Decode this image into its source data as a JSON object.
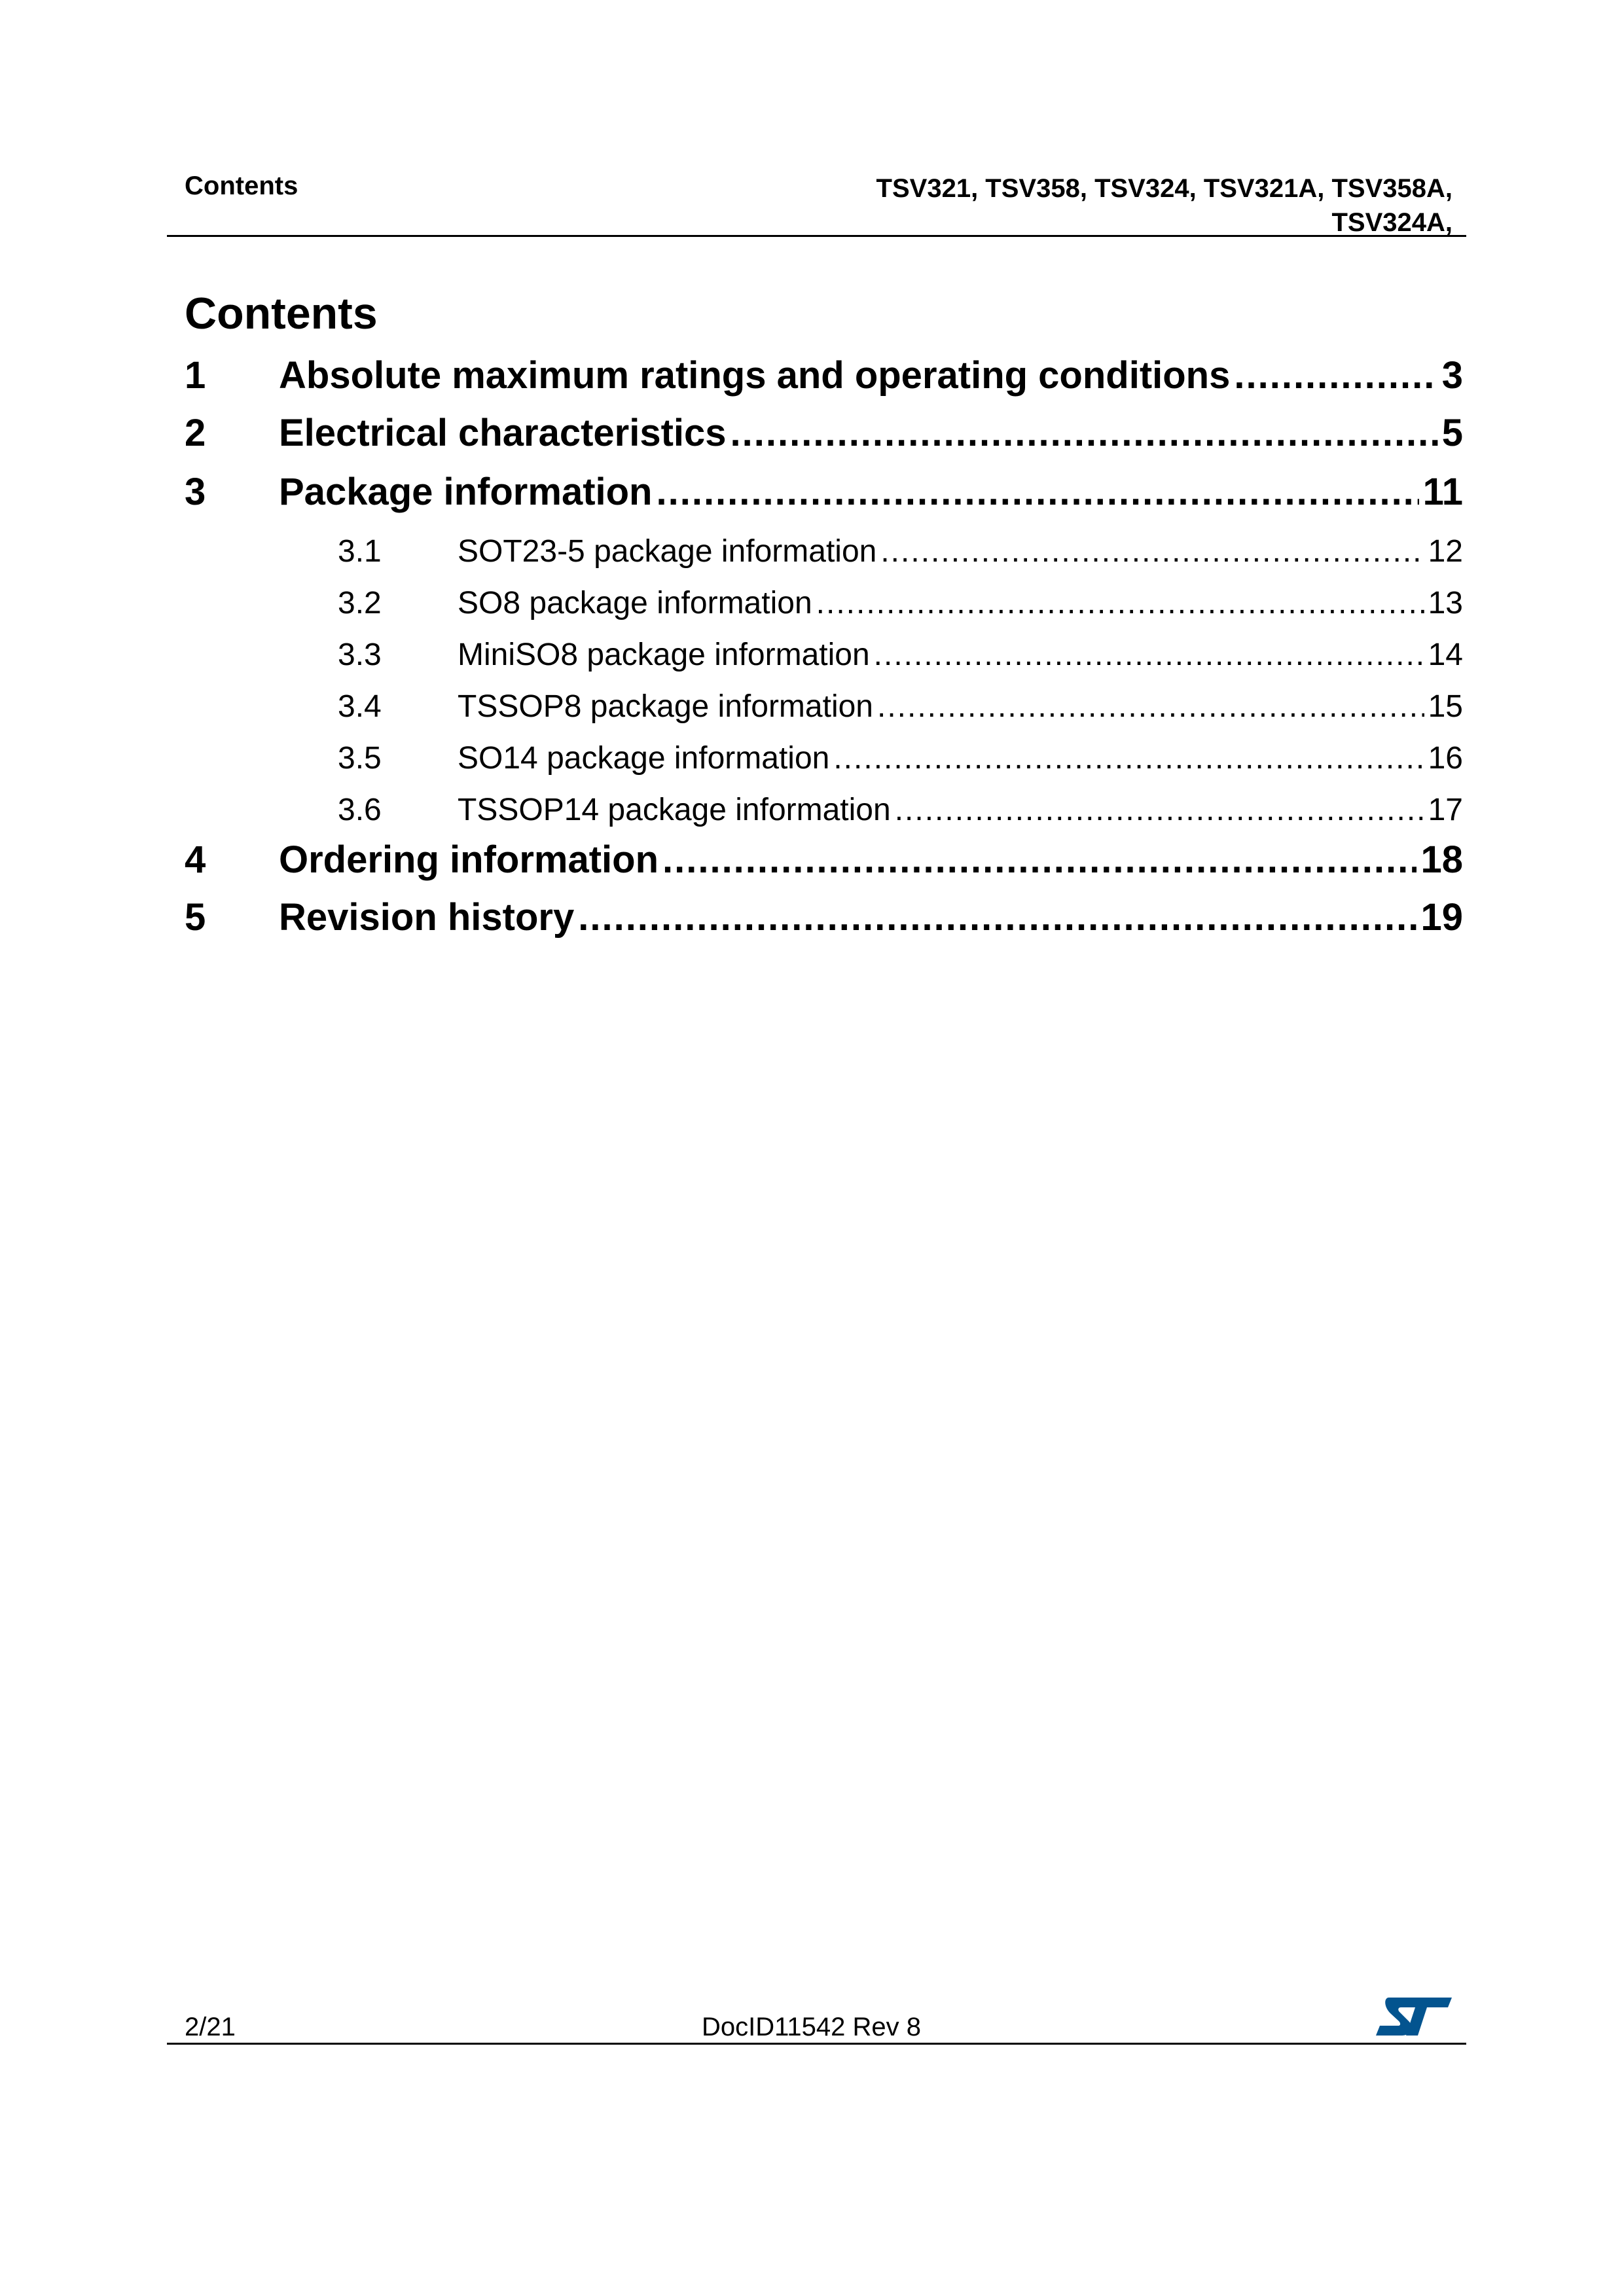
{
  "header": {
    "section": "Contents",
    "products_line1": "TSV321, TSV358, TSV324, TSV321A, TSV358A,",
    "products_line2": "TSV324A,"
  },
  "title": "Contents",
  "toc": [
    {
      "num": "1",
      "title": "Absolute maximum ratings and operating conditions",
      "page": "3",
      "level": 1
    },
    {
      "num": "2",
      "title": "Electrical characteristics",
      "page": "5",
      "level": 1
    },
    {
      "num": "3",
      "title": "Package information",
      "page": "11",
      "level": 1
    },
    {
      "num": "3.1",
      "title": "SOT23-5 package information",
      "page": "12",
      "level": 2
    },
    {
      "num": "3.2",
      "title": "SO8 package information",
      "page": "13",
      "level": 2
    },
    {
      "num": "3.3",
      "title": "MiniSO8 package information",
      "page": "14",
      "level": 2
    },
    {
      "num": "3.4",
      "title": "TSSOP8 package information",
      "page": "15",
      "level": 2
    },
    {
      "num": "3.5",
      "title": "SO14 package information",
      "page": "16",
      "level": 2
    },
    {
      "num": "3.6",
      "title": "TSSOP14 package information",
      "page": "17",
      "level": 2
    },
    {
      "num": "4",
      "title": "Ordering information",
      "page": "18",
      "level": 1
    },
    {
      "num": "5",
      "title": "Revision history",
      "page": "19",
      "level": 1
    }
  ],
  "footer": {
    "page": "2/21",
    "doc_id": "DocID11542 Rev 8",
    "logo_text": "ST",
    "logo_color": "#03548f"
  }
}
